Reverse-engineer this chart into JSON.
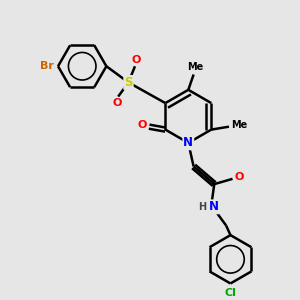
{
  "bg_color": "#e6e6e6",
  "atom_colors": {
    "Br": "#cc6600",
    "O": "#ff0000",
    "S": "#cccc00",
    "N": "#0000ff",
    "Cl": "#00aa00",
    "H": "#444444",
    "C": "#000000"
  },
  "bond_color": "#000000",
  "bond_width": 1.8,
  "fig_w": 3.0,
  "fig_h": 3.0,
  "dpi": 100,
  "xlim": [
    0,
    10
  ],
  "ylim": [
    0,
    10
  ]
}
